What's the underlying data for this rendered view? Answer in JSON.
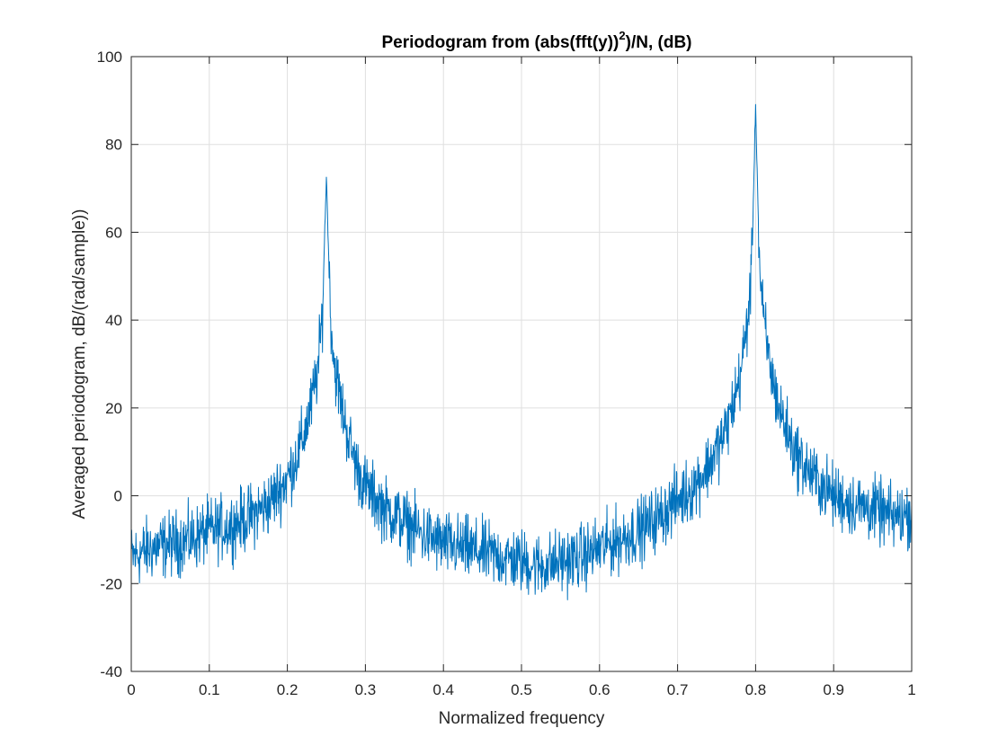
{
  "chart_data": {
    "type": "line",
    "title_main": "Periodogram from (abs(fft(y))",
    "title_superscript": "2",
    "title_tail": ")/N, (dB)",
    "xlabel": "Normalized frequency",
    "ylabel": "Averaged periodogram, dB/(rad/sample))",
    "xlim": [
      0,
      1
    ],
    "ylim": [
      -40,
      100
    ],
    "x_ticks": [
      0,
      0.1,
      0.2,
      0.3,
      0.4,
      0.5,
      0.6,
      0.7,
      0.8,
      0.9,
      1
    ],
    "x_tick_labels": [
      "0",
      "0.1",
      "0.2",
      "0.3",
      "0.4",
      "0.5",
      "0.6",
      "0.7",
      "0.8",
      "0.9",
      "1"
    ],
    "y_ticks": [
      -40,
      -20,
      0,
      20,
      40,
      60,
      80,
      100
    ],
    "y_tick_labels": [
      "-40",
      "-20",
      "0",
      "20",
      "40",
      "60",
      "80",
      "100"
    ],
    "grid": true,
    "line_color": "#0072BD",
    "series": [
      {
        "x": [
          0,
          0.025,
          0.05,
          0.075,
          0.1,
          0.125,
          0.15,
          0.175,
          0.2,
          0.21,
          0.22,
          0.23,
          0.24,
          0.245,
          0.25,
          0.255,
          0.26,
          0.27,
          0.28,
          0.29,
          0.3,
          0.325,
          0.35,
          0.375,
          0.4,
          0.425,
          0.45,
          0.475,
          0.5,
          0.525,
          0.55,
          0.575,
          0.6,
          0.625,
          0.65,
          0.675,
          0.7,
          0.72,
          0.74,
          0.76,
          0.77,
          0.78,
          0.79,
          0.795,
          0.8,
          0.805,
          0.81,
          0.82,
          0.83,
          0.84,
          0.85,
          0.875,
          0.9,
          0.925,
          0.95,
          0.975,
          1
        ],
        "y": [
          -14,
          -12,
          -11,
          -10,
          -8,
          -7,
          -5,
          -2,
          4,
          8,
          13,
          20,
          30,
          42,
          73,
          42,
          30,
          20,
          12,
          6,
          2,
          -3,
          -6,
          -9,
          -11,
          -12,
          -13,
          -14,
          -15,
          -16,
          -15,
          -14,
          -12,
          -10,
          -8,
          -5,
          -1,
          2,
          7,
          14,
          20,
          27,
          40,
          52,
          89,
          52,
          40,
          28,
          20,
          15,
          10,
          4,
          0,
          -2,
          -3,
          -5,
          -4
        ]
      }
    ]
  }
}
